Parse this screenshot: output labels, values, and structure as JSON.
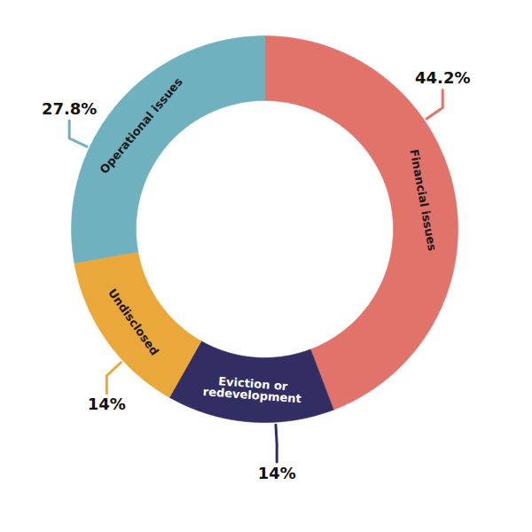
{
  "chart_data": {
    "type": "donut",
    "categories": [
      "Financial issues",
      "Eviction or\nredevelopment",
      "Undisclosed",
      "Operational issues"
    ],
    "values": [
      44.2,
      14,
      14,
      27.8
    ],
    "value_labels": [
      "44.2%",
      "14%",
      "14%",
      "27.8%"
    ],
    "colors": [
      "#e2736b",
      "#322e63",
      "#eaa83a",
      "#6fb1bf"
    ],
    "data_labels": true
  }
}
